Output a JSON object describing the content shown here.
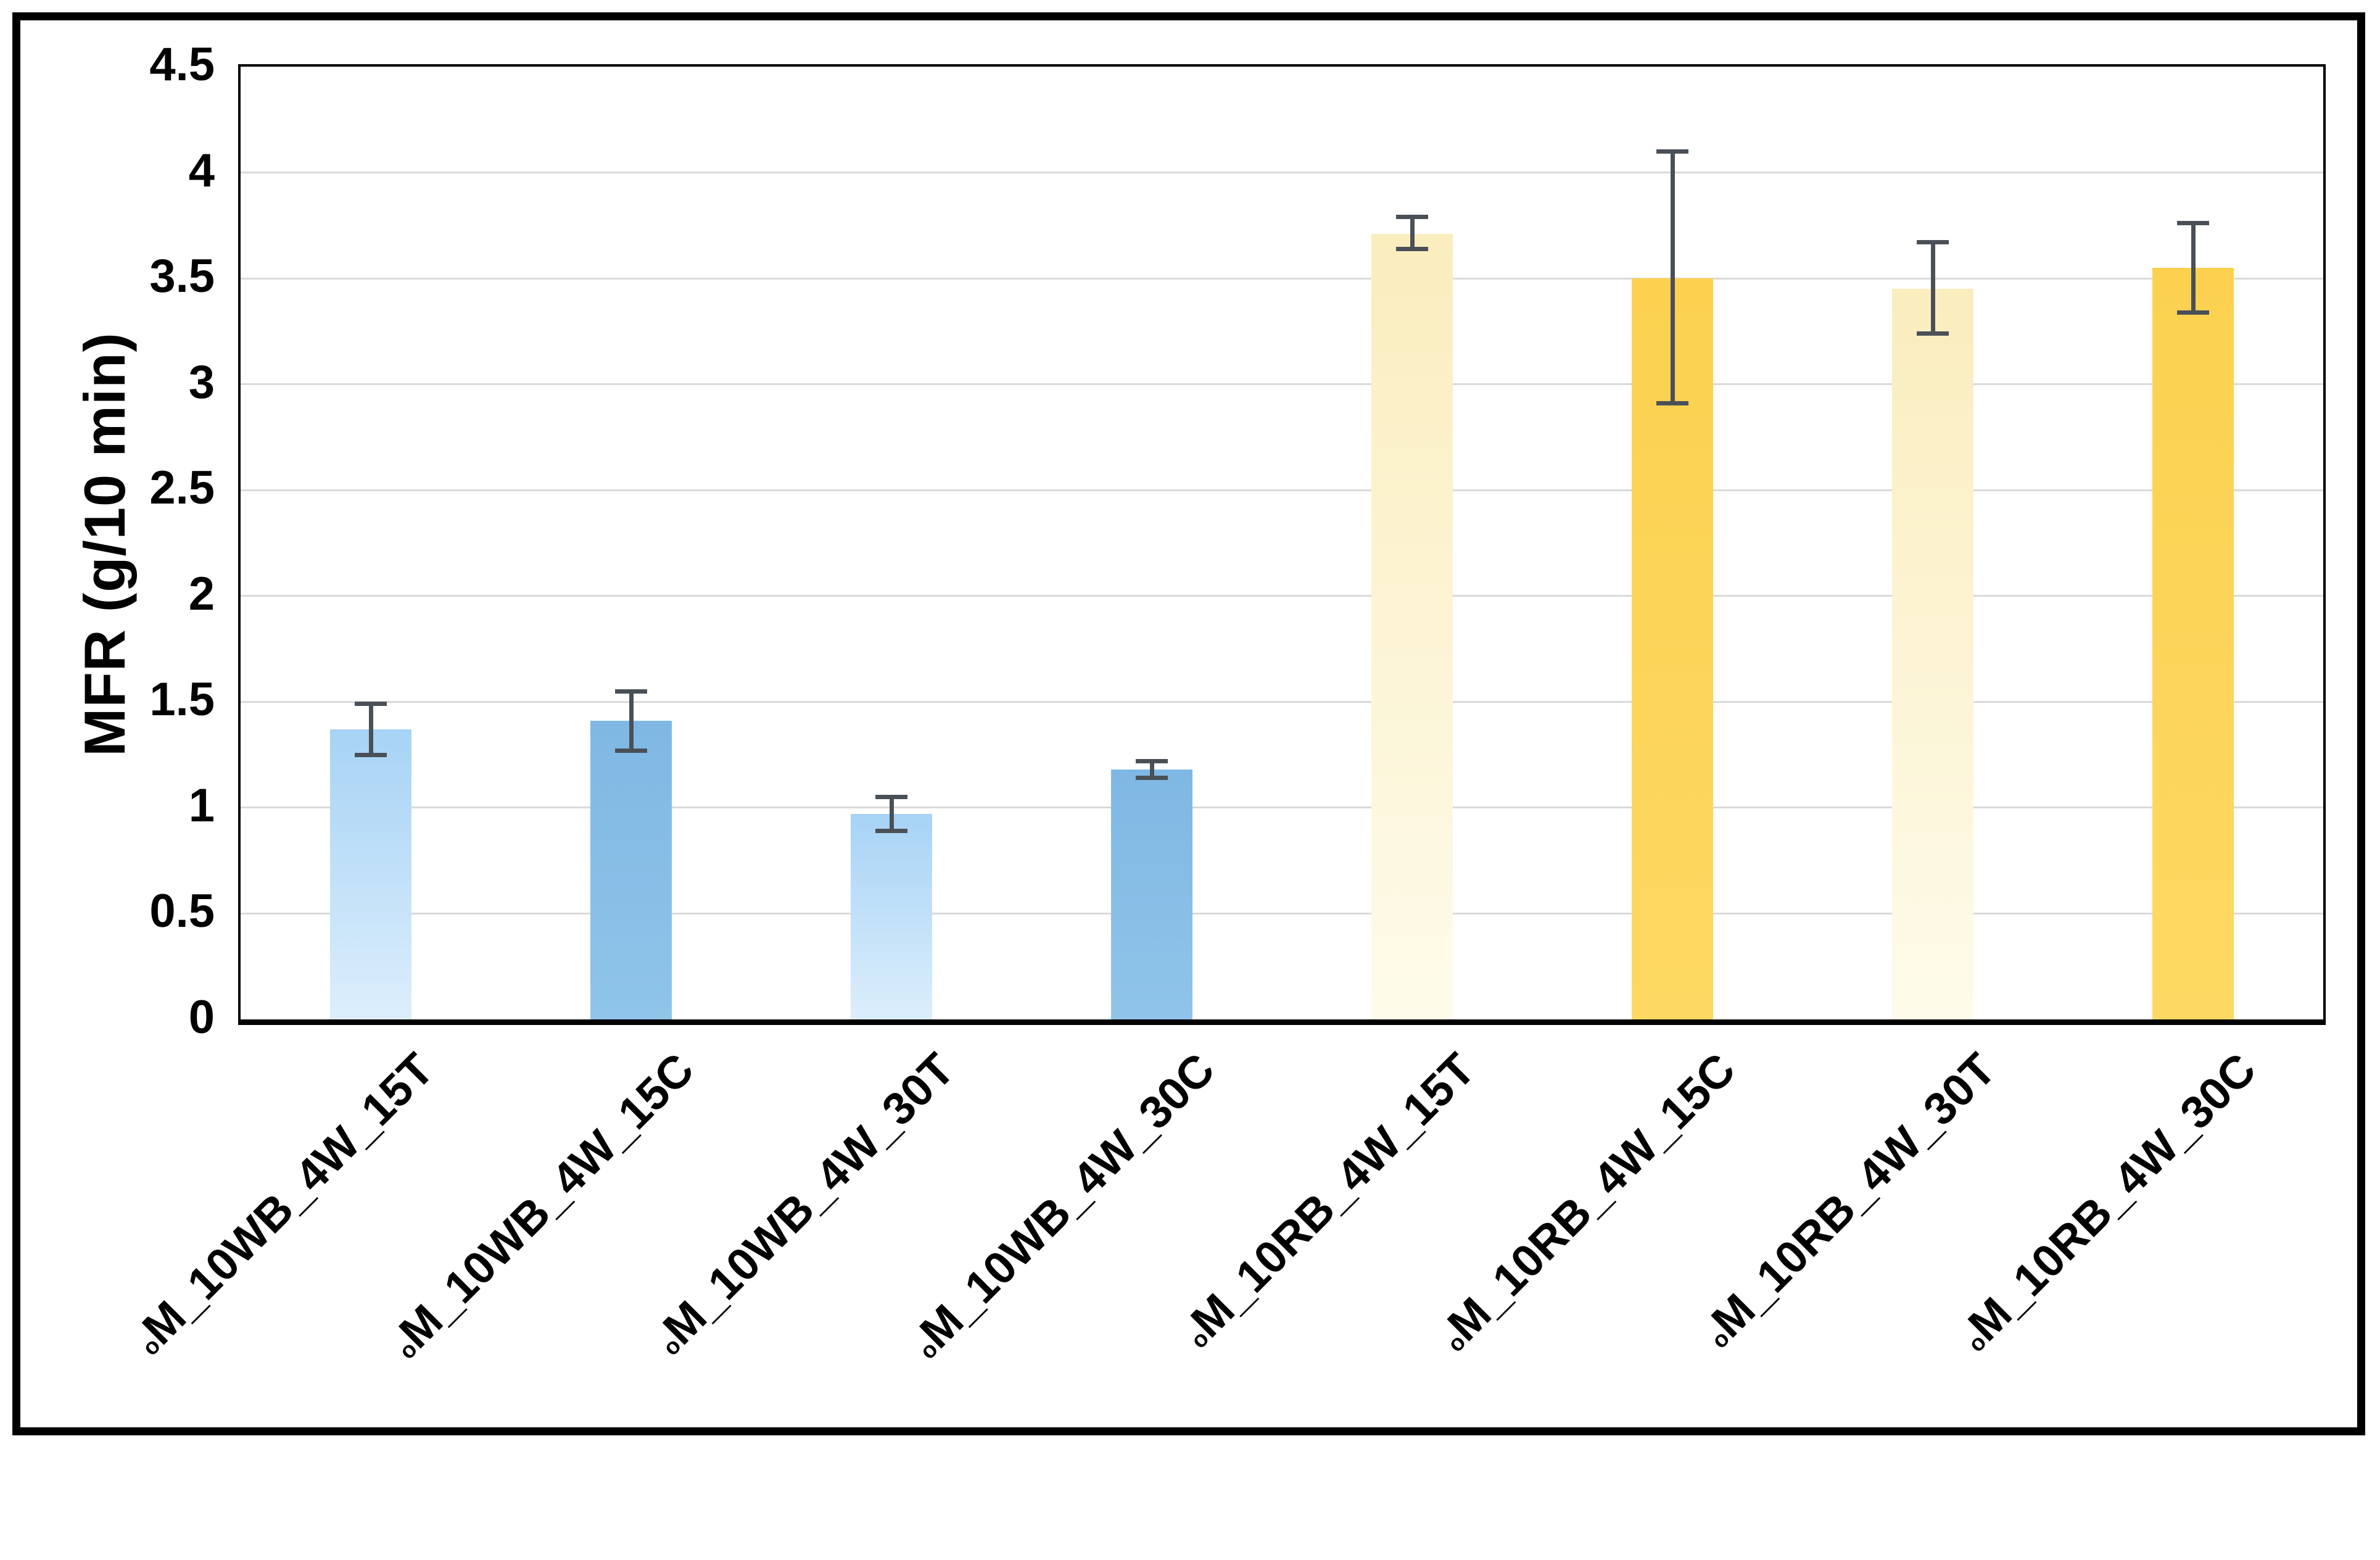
{
  "chart_data": {
    "type": "bar",
    "title": "",
    "xlabel": "",
    "ylabel": "MFR (g/10 min)",
    "ylim": [
      0,
      4.5
    ],
    "ytick_step": 0.5,
    "yticks": [
      "0",
      "0.5",
      "1",
      "1.5",
      "2",
      "2.5",
      "3",
      "3.5",
      "4",
      "4.5"
    ],
    "grid": "horizontal-gridlines-on",
    "legend_position": "none",
    "categories": [
      {
        "prefix": "o",
        "name": "M_10WB_4W_15T"
      },
      {
        "prefix": "o",
        "name": "M_10WB_4W_15C"
      },
      {
        "prefix": "o",
        "name": "M_10WB_4W_30T"
      },
      {
        "prefix": "o",
        "name": "M_10WB_4W_30C"
      },
      {
        "prefix": "o",
        "name": "M_10RB_4W_15T"
      },
      {
        "prefix": "o",
        "name": "M_10RB_4W_15C"
      },
      {
        "prefix": "o",
        "name": "M_10RB_4W_30T"
      },
      {
        "prefix": "o",
        "name": "M_10RB_4W_30C"
      }
    ],
    "series": [
      {
        "name": "MFR",
        "values": [
          1.37,
          1.41,
          0.97,
          1.18,
          3.71,
          3.5,
          3.45,
          3.55
        ],
        "error_plus": [
          0.12,
          0.14,
          0.08,
          0.04,
          0.08,
          0.6,
          0.22,
          0.21
        ],
        "error_minus": [
          0.12,
          0.14,
          0.08,
          0.04,
          0.07,
          0.59,
          0.21,
          0.21
        ]
      }
    ],
    "bar_styles": [
      "light_blue",
      "medium_blue",
      "light_blue",
      "medium_blue",
      "pale_yellow",
      "solid_yellow",
      "pale_yellow",
      "solid_yellow"
    ],
    "palette": {
      "light_blue_top": "#A7D3F5",
      "light_blue_bottom": "#DCEEFC",
      "medium_blue_top": "#7FB8E4",
      "medium_blue_bottom": "#90C4E9",
      "pale_yellow_top": "#FAEDBE",
      "pale_yellow_bottom": "#FEFBEA",
      "solid_yellow_top": "#FCD150",
      "solid_yellow_bottom": "#FDD862",
      "error_bar": "#4A5057",
      "gridline": "#D9D9D9",
      "axis": "#000000"
    }
  }
}
